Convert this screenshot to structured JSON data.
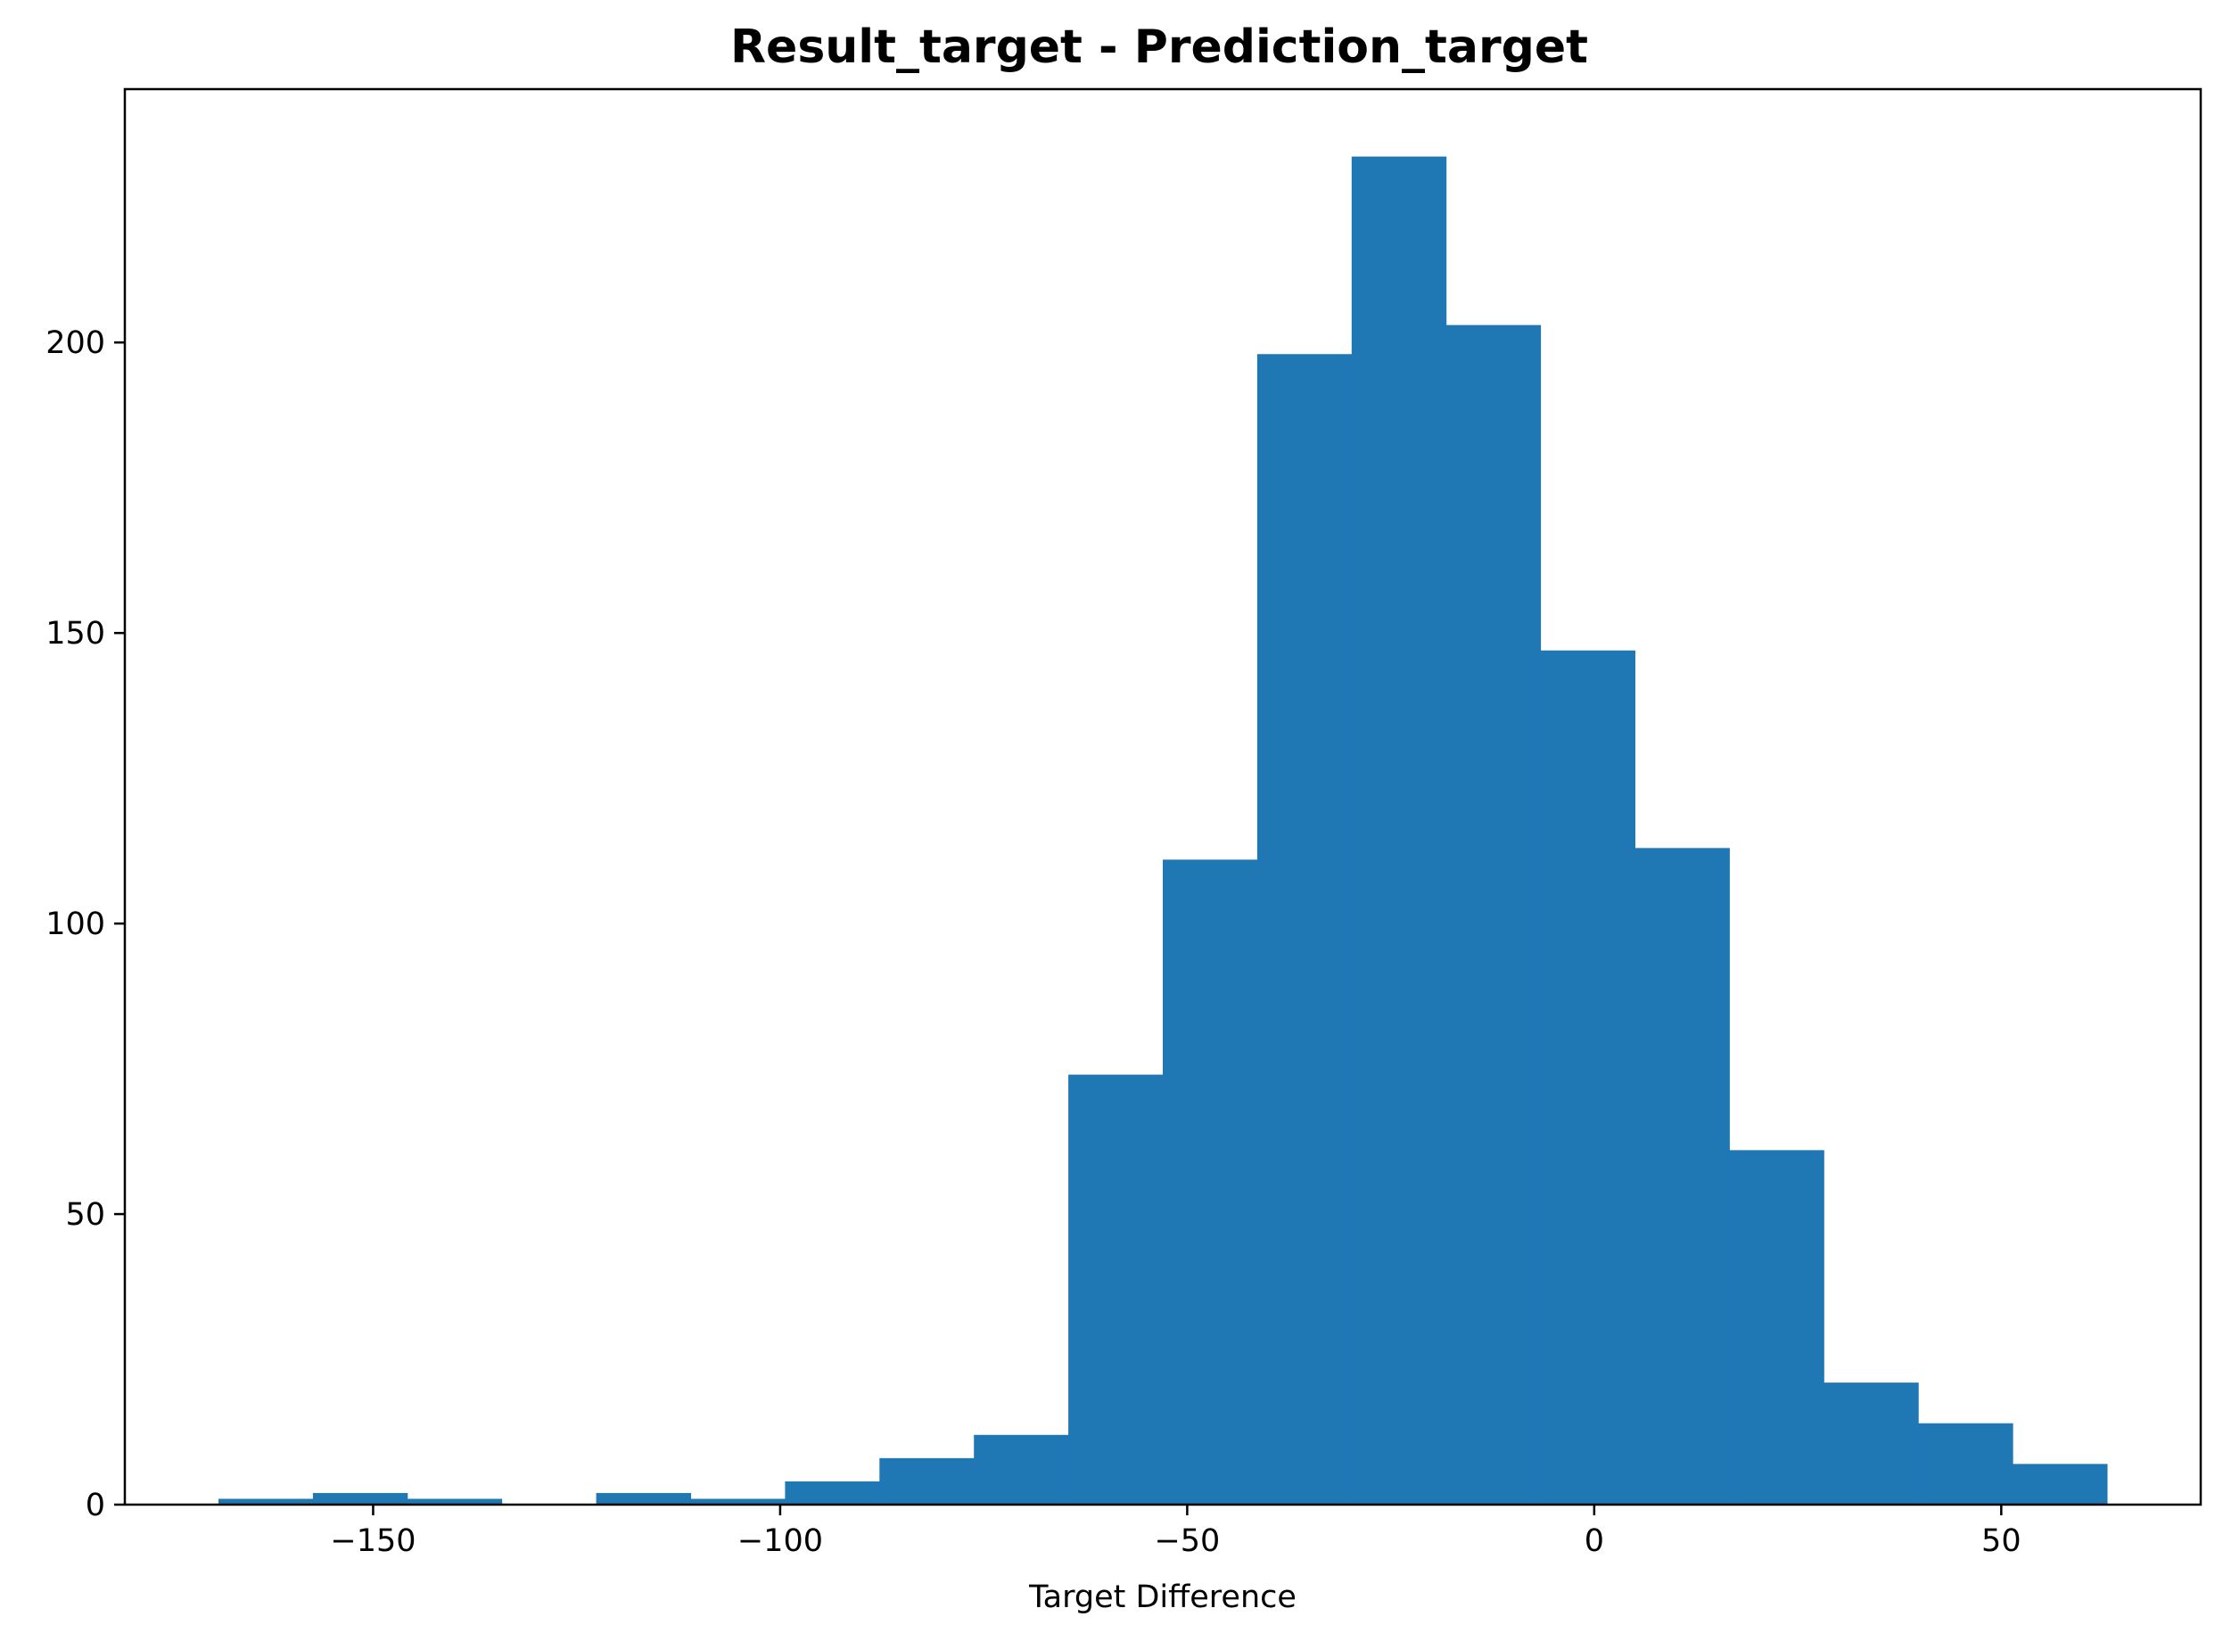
{
  "chart_data": {
    "type": "bar",
    "subtype": "histogram",
    "title": "Result_target - Prediction_target",
    "xlabel": "Target Difference",
    "ylabel": "",
    "xlim": [
      -180.5,
      74.5
    ],
    "ylim": [
      0,
      243.6
    ],
    "bar_color": "#1f77b4",
    "x_ticks": [
      {
        "value": -150,
        "label": "−150"
      },
      {
        "value": -100,
        "label": "−100"
      },
      {
        "value": -50,
        "label": "−50"
      },
      {
        "value": 0,
        "label": "0"
      },
      {
        "value": 50,
        "label": "50"
      }
    ],
    "y_ticks": [
      {
        "value": 0,
        "label": "0"
      },
      {
        "value": 50,
        "label": "50"
      },
      {
        "value": 100,
        "label": "100"
      },
      {
        "value": 150,
        "label": "150"
      },
      {
        "value": 200,
        "label": "200"
      }
    ],
    "bins": [
      {
        "x0": -169.0,
        "x1": -157.4,
        "count": 1
      },
      {
        "x0": -157.4,
        "x1": -145.8,
        "count": 2
      },
      {
        "x0": -145.8,
        "x1": -134.2,
        "count": 1
      },
      {
        "x0": -134.2,
        "x1": -122.6,
        "count": 0
      },
      {
        "x0": -122.6,
        "x1": -111.0,
        "count": 2
      },
      {
        "x0": -111.0,
        "x1": -99.4,
        "count": 1
      },
      {
        "x0": -99.4,
        "x1": -87.8,
        "count": 4
      },
      {
        "x0": -87.8,
        "x1": -76.2,
        "count": 8
      },
      {
        "x0": -76.2,
        "x1": -64.6,
        "count": 12
      },
      {
        "x0": -64.6,
        "x1": -53.0,
        "count": 74
      },
      {
        "x0": -53.0,
        "x1": -41.4,
        "count": 111
      },
      {
        "x0": -41.4,
        "x1": -29.8,
        "count": 198
      },
      {
        "x0": -29.8,
        "x1": -18.2,
        "count": 232
      },
      {
        "x0": -18.2,
        "x1": -6.6,
        "count": 203
      },
      {
        "x0": -6.6,
        "x1": 5.0,
        "count": 147
      },
      {
        "x0": 5.0,
        "x1": 16.6,
        "count": 113
      },
      {
        "x0": 16.6,
        "x1": 28.2,
        "count": 61
      },
      {
        "x0": 28.2,
        "x1": 39.8,
        "count": 21
      },
      {
        "x0": 39.8,
        "x1": 51.4,
        "count": 14
      },
      {
        "x0": 51.4,
        "x1": 63.0,
        "count": 7
      }
    ]
  }
}
